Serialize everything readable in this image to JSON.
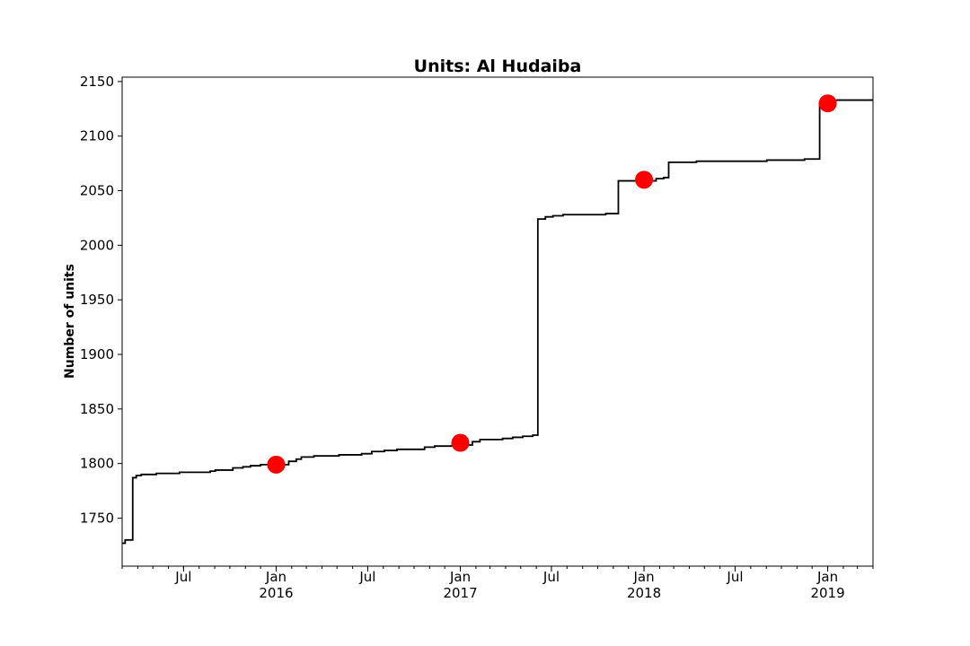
{
  "chart_data": {
    "type": "line",
    "title": "Units: Al Hudaiba",
    "xlabel": "",
    "ylabel": "Number of units",
    "xlim": [
      "2015-03-01",
      "2019-04-01"
    ],
    "ylim": [
      1706,
      2154
    ],
    "grid": false,
    "yticks": [
      1750,
      1800,
      1850,
      1900,
      1950,
      2000,
      2050,
      2100,
      2150
    ],
    "xticks": [
      {
        "date": "2015-07-01",
        "label": "Jul",
        "sub": ""
      },
      {
        "date": "2016-01-01",
        "label": "Jan",
        "sub": "2016"
      },
      {
        "date": "2016-07-01",
        "label": "Jul",
        "sub": ""
      },
      {
        "date": "2017-01-01",
        "label": "Jan",
        "sub": "2017"
      },
      {
        "date": "2017-07-01",
        "label": "Jul",
        "sub": ""
      },
      {
        "date": "2018-01-01",
        "label": "Jan",
        "sub": "2018"
      },
      {
        "date": "2018-07-01",
        "label": "Jul",
        "sub": ""
      },
      {
        "date": "2019-01-01",
        "label": "Jan",
        "sub": "2019"
      }
    ],
    "series": [
      {
        "name": "",
        "style": "step",
        "color": "#000000",
        "points": [
          [
            "2015-03-01",
            1727
          ],
          [
            "2015-03-07",
            1730
          ],
          [
            "2015-03-22",
            1787
          ],
          [
            "2015-03-29",
            1789
          ],
          [
            "2015-04-08",
            1790
          ],
          [
            "2015-05-08",
            1791
          ],
          [
            "2015-06-23",
            1792
          ],
          [
            "2015-08-23",
            1793
          ],
          [
            "2015-09-02",
            1794
          ],
          [
            "2015-10-07",
            1796
          ],
          [
            "2015-10-27",
            1797
          ],
          [
            "2015-11-11",
            1798
          ],
          [
            "2015-12-01",
            1799
          ],
          [
            "2016-01-26",
            1802
          ],
          [
            "2016-02-10",
            1804
          ],
          [
            "2016-02-20",
            1806
          ],
          [
            "2016-03-16",
            1807
          ],
          [
            "2016-05-05",
            1808
          ],
          [
            "2016-06-19",
            1809
          ],
          [
            "2016-07-09",
            1811
          ],
          [
            "2016-08-03",
            1812
          ],
          [
            "2016-08-28",
            1813
          ],
          [
            "2016-10-22",
            1815
          ],
          [
            "2016-11-11",
            1816
          ],
          [
            "2016-12-16",
            1817
          ],
          [
            "2017-01-25",
            1820
          ],
          [
            "2017-02-09",
            1822
          ],
          [
            "2017-03-26",
            1823
          ],
          [
            "2017-04-15",
            1824
          ],
          [
            "2017-05-05",
            1825
          ],
          [
            "2017-05-25",
            1826
          ],
          [
            "2017-06-04",
            2024
          ],
          [
            "2017-06-19",
            2026
          ],
          [
            "2017-07-04",
            2027
          ],
          [
            "2017-07-24",
            2028
          ],
          [
            "2017-10-17",
            2029
          ],
          [
            "2017-11-11",
            2059
          ],
          [
            "2018-01-25",
            2061
          ],
          [
            "2018-02-09",
            2062
          ],
          [
            "2018-02-19",
            2076
          ],
          [
            "2018-04-15",
            2077
          ],
          [
            "2018-09-02",
            2078
          ],
          [
            "2018-11-16",
            2079
          ],
          [
            "2018-12-16",
            2130
          ],
          [
            "2019-01-10",
            2133
          ],
          [
            "2019-04-01",
            2133
          ]
        ]
      },
      {
        "name": "",
        "style": "markers",
        "color": "#ff0000",
        "points": [
          [
            "2016-01-01",
            1799
          ],
          [
            "2017-01-01",
            1819
          ],
          [
            "2018-01-01",
            2060
          ],
          [
            "2019-01-01",
            2130
          ]
        ]
      }
    ]
  }
}
